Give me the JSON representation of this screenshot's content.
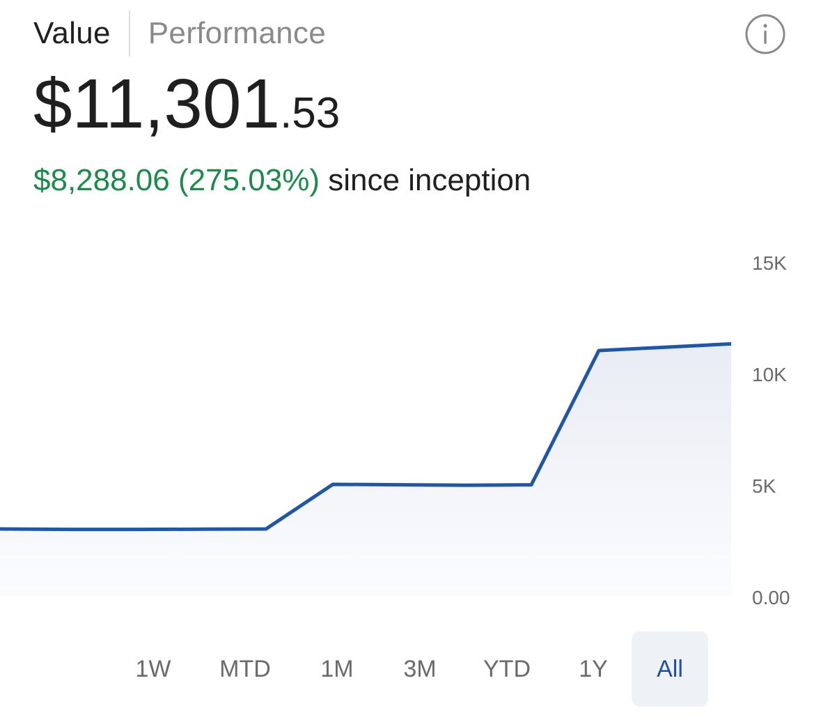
{
  "tabs": [
    {
      "label": "Value",
      "active": true
    },
    {
      "label": "Performance",
      "active": false
    }
  ],
  "info_icon": "info-circle-icon",
  "value": {
    "main": "$11,301",
    "cents": ".53"
  },
  "change": {
    "amount_pct": "$8,288.06 (275.03%)",
    "suffix": " since inception",
    "color": "#1b8a4a"
  },
  "chart_data": {
    "type": "area",
    "title": "",
    "xlabel": "",
    "ylabel": "",
    "ylim": [
      0,
      15000
    ],
    "y_ticks": [
      "15K",
      "10K",
      "5K",
      "0.00"
    ],
    "y_tick_values": [
      15000,
      10000,
      5000,
      0
    ],
    "grid": false,
    "y_axis_side": "right",
    "line_color": "#1f56a8",
    "x": [
      0,
      1,
      2,
      3,
      4,
      5,
      6,
      7,
      8,
      9,
      10,
      11
    ],
    "series": [
      {
        "values": [
          3000,
          2980,
          2980,
          2990,
          3000,
          5000,
          4980,
          4960,
          4980,
          11000,
          11150,
          11301.53
        ]
      }
    ]
  },
  "ranges": [
    {
      "label": "1W",
      "selected": false
    },
    {
      "label": "MTD",
      "selected": false
    },
    {
      "label": "1M",
      "selected": false
    },
    {
      "label": "3M",
      "selected": false
    },
    {
      "label": "YTD",
      "selected": false
    },
    {
      "label": "1Y",
      "selected": false
    },
    {
      "label": "All",
      "selected": true
    }
  ]
}
